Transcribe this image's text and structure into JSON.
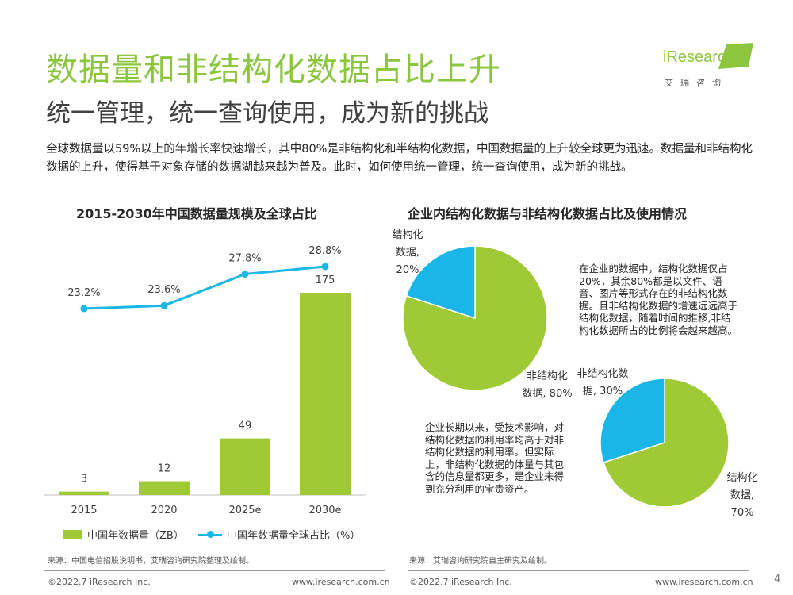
{
  "page": {
    "title": "数据量和非结构化数据占比上升",
    "subtitle": "统一管理，统一查询使用，成为新的挑战",
    "intro": "全球数据量以59%以上的年增长率快速增长，其中80%是非结构化和半结构化数据，中国数据量的上升较全球更为迅速。数据量和非结构化数据的上升，使得基于对象存储的数据湖越来越为普及。此时，如何使用统一管理，统一查询使用，成为新的挑战。",
    "page_number": "4"
  },
  "logo": {
    "brand": "iResearch",
    "cn": "艾瑞咨询",
    "color": "#8cc63f"
  },
  "left": {
    "title": "2015-2030年中国数据量规模及全球占比",
    "source": "来源：中国电信招股说明书，艾瑞咨询研究院整理及绘制。",
    "legend_bar": "中国年数据量（ZB）",
    "legend_line": "中国年数据量全球占比（%）"
  },
  "right": {
    "title": "企业内结构化数据与非结构化数据占比及使用情况",
    "source": "来源：艾瑞咨询研究院自主研究及绘制。",
    "note1": "在企业的数据中，结构化数据仅占20%，其余80%都是以文件、语音、图片等形式存在的非结构化数据。且非结构化数据的增速远远高于结构化数据，随着时间的推移,非结构化数据所占的比例将会越来越高。",
    "note2": "企业长期以来，受技术影响，对结构化数据的利用率均高于对非结构化数据的利用率。但实际上，非结构化数据的体量与其包含的信息量都更多，是企业未得到充分利用的宝贵资产。",
    "pie1_label_struct_1": "结构化",
    "pie1_label_struct_2": "数据,",
    "pie1_label_struct_3": "20%",
    "pie1_label_unstruct_1": "非结构化",
    "pie1_label_unstruct_2": "数据, 80%",
    "pie2_label_unstruct_1": "非结构化数",
    "pie2_label_unstruct_2": "据, 30%",
    "pie2_label_struct_1": "结构化",
    "pie2_label_struct_2": "数据,",
    "pie2_label_struct_3": "70%"
  },
  "footer": {
    "left_copyright": "©2022.7 iResearch Inc.",
    "left_url": "www.iresearch.com.cn",
    "right_copyright": "©2022.7 iResearch Inc.",
    "right_url": "www.iresearch.com.cn"
  },
  "colors": {
    "green": "#a0c936",
    "blue": "#1ab6e8",
    "title_green": "#8cc63f"
  },
  "chart_data": [
    {
      "type": "bar",
      "title": "2015-2030年中国数据量规模及全球占比",
      "categories": [
        "2015",
        "2020",
        "2025e",
        "2030e"
      ],
      "series": [
        {
          "name": "中国年数据量（ZB）",
          "type": "bar",
          "values": [
            3,
            12,
            49,
            175
          ],
          "labels": [
            "3",
            "12",
            "49",
            "175"
          ]
        },
        {
          "name": "中国年数据量全球占比（%）",
          "type": "line",
          "values": [
            23.2,
            23.6,
            27.8,
            28.8
          ],
          "labels": [
            "23.2%",
            "23.6%",
            "27.8%",
            "28.8%"
          ]
        }
      ],
      "legend": "bottom"
    },
    {
      "type": "pie",
      "categories": [
        "结构化数据",
        "非结构化数据"
      ],
      "values": [
        20,
        80
      ]
    },
    {
      "type": "pie",
      "categories": [
        "非结构化数据",
        "结构化数据"
      ],
      "values": [
        30,
        70
      ]
    }
  ]
}
